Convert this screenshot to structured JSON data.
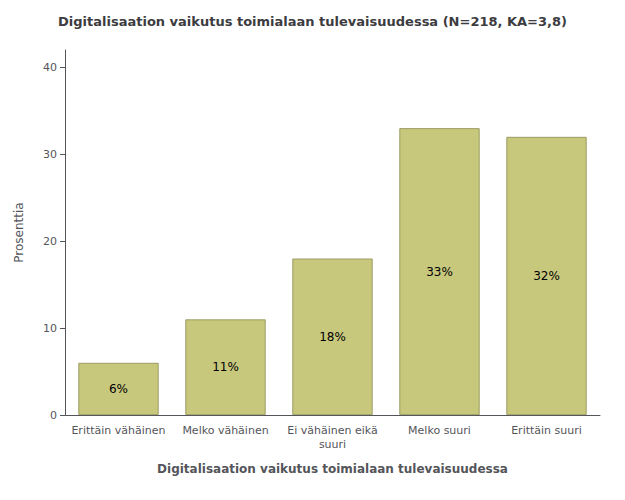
{
  "chart_data": {
    "type": "bar",
    "title": "Digitalisaation vaikutus toimialaan tulevaisuudessa (N=218, KA=3,8)",
    "xlabel": "Digitalisaation vaikutus toimialaan tulevaisuudessa",
    "ylabel": "Prosenttia",
    "categories": [
      "Erittäin vähäinen",
      "Melko vähäinen",
      "Ei vähäinen eikä\nsuuri",
      "Melko suuri",
      "Erittäin suuri"
    ],
    "values": [
      6,
      11,
      18,
      33,
      32
    ],
    "value_labels": [
      "6%",
      "11%",
      "18%",
      "33%",
      "32%"
    ],
    "data_labels": true,
    "color": "#c8c87d",
    "ylim": [
      0,
      42
    ],
    "yticks": [
      0,
      10,
      20,
      30,
      40
    ],
    "grid": false
  }
}
